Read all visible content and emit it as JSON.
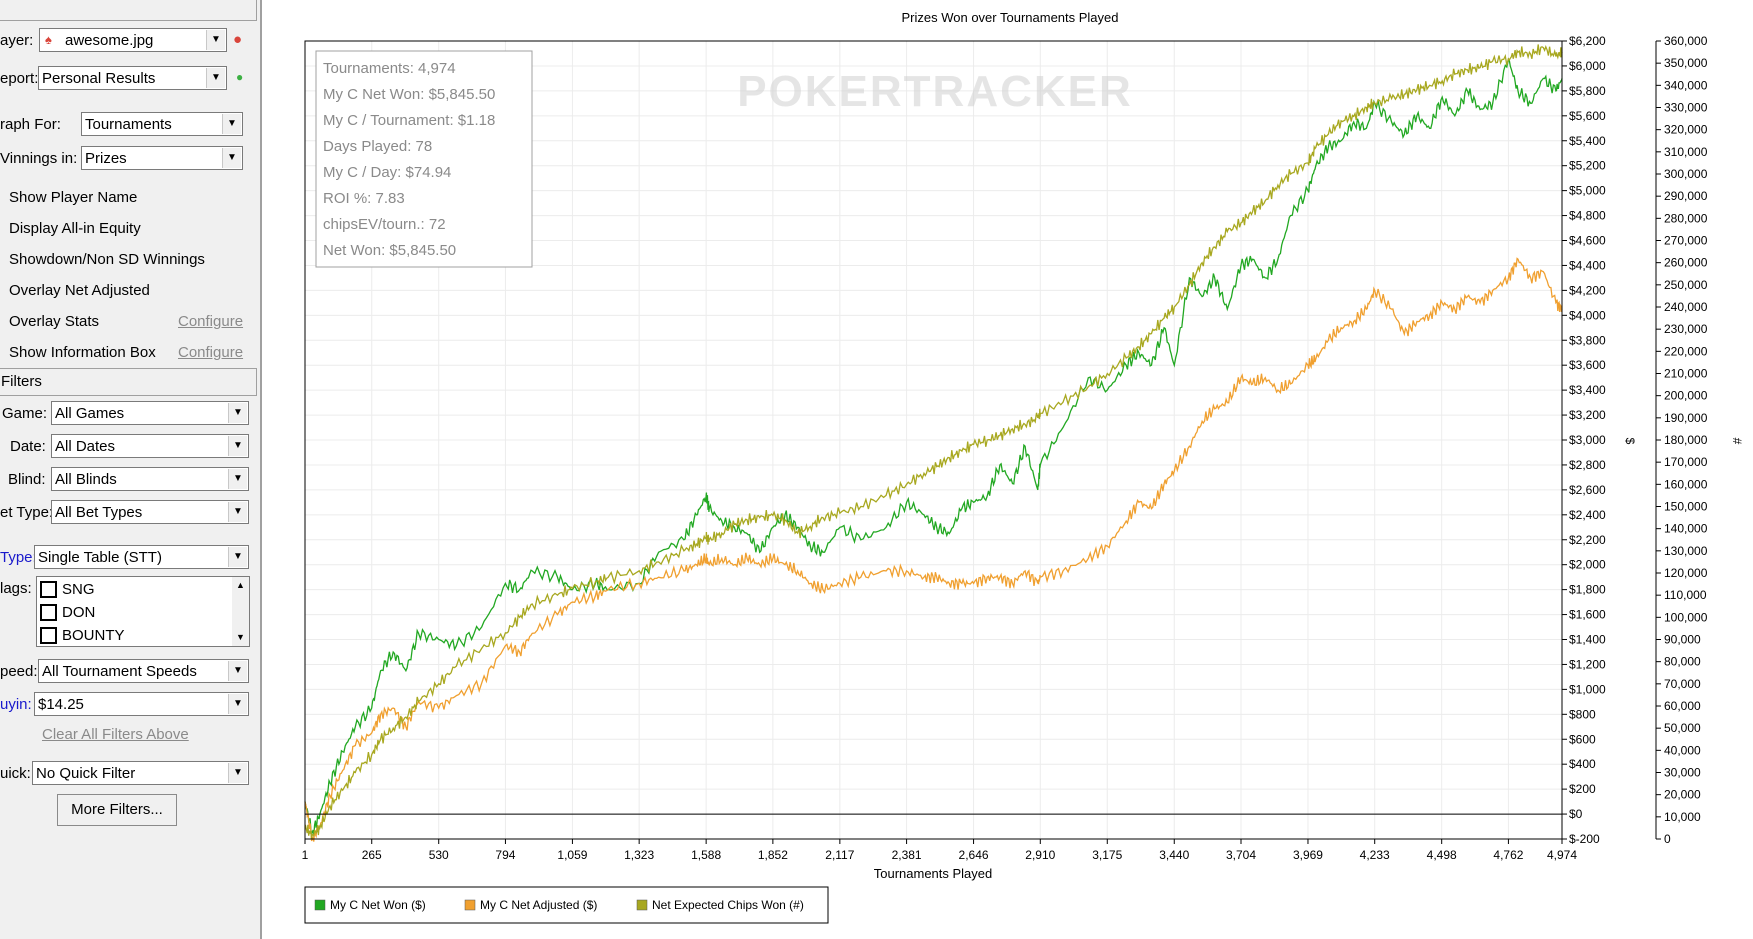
{
  "panel": {
    "player_label": "ayer:",
    "player_value": "awesome.jpg",
    "report_label": "eport:",
    "report_value": "Personal Results",
    "graph_for_label": "raph For:",
    "graph_for_value": "Tournaments",
    "winnings_label": "Vinnings in:",
    "winnings_value": "Prizes",
    "options": [
      {
        "label": "Show Player Name",
        "configure": ""
      },
      {
        "label": "Display All-in Equity",
        "configure": ""
      },
      {
        "label": "Showdown/Non SD Winnings",
        "configure": ""
      },
      {
        "label": "Overlay Net Adjusted",
        "configure": ""
      },
      {
        "label": "Overlay Stats",
        "configure": "Configure"
      },
      {
        "label": "Show Information Box",
        "configure": "Configure"
      }
    ],
    "filters_header": "Filters",
    "game_label": "Game:",
    "game_value": "All Games",
    "date_label": "Date:",
    "date_value": "All Dates",
    "blind_label": "Blind:",
    "blind_value": "All Blinds",
    "bettype_label": "et Type:",
    "bettype_value": "All Bet Types",
    "type_label": "Type:",
    "type_value": "Single Table (STT)",
    "flags_label": "lags:",
    "flags": [
      "SNG",
      "DON",
      "BOUNTY"
    ],
    "speed_label": "peed:",
    "speed_value": "All Tournament Speeds",
    "buyin_label": "uyin:",
    "buyin_value": "$14.25",
    "clear_filters": "Clear All Filters Above",
    "quick_label": "uick:",
    "quick_value": "No Quick Filter",
    "more_filters": "More Filters..."
  },
  "chart_data": {
    "type": "line",
    "title": "Prizes Won over Tournaments Played",
    "xlabel": "Tournaments Played",
    "ylabel": "$",
    "y2label": "#",
    "xlim": [
      1,
      4974
    ],
    "ylim": [
      -200,
      6200
    ],
    "y2lim": [
      0,
      360000
    ],
    "x_ticks": [
      "1",
      "265",
      "530",
      "794",
      "1,059",
      "1,323",
      "1,588",
      "1,852",
      "2,117",
      "2,381",
      "2,646",
      "2,910",
      "3,175",
      "3,440",
      "3,704",
      "3,969",
      "4,233",
      "4,498",
      "4,762",
      "4,974"
    ],
    "y_ticks": [
      "$-200",
      "$0",
      "$200",
      "$400",
      "$600",
      "$800",
      "$1,000",
      "$1,200",
      "$1,400",
      "$1,600",
      "$1,800",
      "$2,000",
      "$2,200",
      "$2,400",
      "$2,600",
      "$2,800",
      "$3,000",
      "$3,200",
      "$3,400",
      "$3,600",
      "$3,800",
      "$4,000",
      "$4,200",
      "$4,400",
      "$4,600",
      "$4,800",
      "$5,000",
      "$5,200",
      "$5,400",
      "$5,600",
      "$5,800",
      "$6,000",
      "$6,200"
    ],
    "y2_ticks": [
      "0",
      "10,000",
      "20,000",
      "30,000",
      "40,000",
      "50,000",
      "60,000",
      "70,000",
      "80,000",
      "90,000",
      "100,000",
      "110,000",
      "120,000",
      "130,000",
      "140,000",
      "150,000",
      "160,000",
      "170,000",
      "180,000",
      "190,000",
      "200,000",
      "210,000",
      "220,000",
      "230,000",
      "240,000",
      "250,000",
      "260,000",
      "270,000",
      "280,000",
      "290,000",
      "300,000",
      "310,000",
      "320,000",
      "330,000",
      "340,000",
      "350,000",
      "360,000"
    ],
    "grid": true,
    "legend_position": "bottom-left",
    "watermark": "POKERTRACKER",
    "info_box": [
      "Tournaments: 4,974",
      "My C Net Won: $5,845.50",
      "My C / Tournament: $1.18",
      "Days Played: 78",
      "My C / Day: $74.94",
      "ROI %: 7.83",
      "chipsEV/tourn.: 72",
      "Net Won: $5,845.50"
    ],
    "series": [
      {
        "name": "My C Net Won ($)",
        "axis": "left",
        "color": "#22a822",
        "x": [
          1,
          30,
          60,
          100,
          150,
          200,
          265,
          300,
          350,
          400,
          450,
          530,
          600,
          700,
          794,
          850,
          900,
          1000,
          1059,
          1150,
          1200,
          1323,
          1400,
          1500,
          1550,
          1588,
          1600,
          1650,
          1700,
          1750,
          1800,
          1852,
          1900,
          1950,
          2000,
          2050,
          2117,
          2200,
          2300,
          2381,
          2450,
          2500,
          2550,
          2600,
          2646,
          2700,
          2750,
          2800,
          2850,
          2900,
          2910,
          3000,
          3100,
          3175,
          3250,
          3300,
          3350,
          3400,
          3440,
          3500,
          3550,
          3600,
          3650,
          3704,
          3750,
          3800,
          3850,
          3900,
          3969,
          4000,
          4050,
          4100,
          4150,
          4200,
          4233,
          4300,
          4350,
          4400,
          4450,
          4500,
          4550,
          4600,
          4650,
          4700,
          4762,
          4800,
          4850,
          4900,
          4950,
          4974
        ],
        "y": [
          100,
          -150,
          0,
          250,
          500,
          700,
          850,
          1150,
          1300,
          1150,
          1450,
          1400,
          1350,
          1500,
          1850,
          1800,
          1950,
          1900,
          1800,
          1850,
          1800,
          1850,
          2100,
          2200,
          2400,
          2550,
          2450,
          2350,
          2300,
          2250,
          2100,
          2300,
          2400,
          2300,
          2150,
          2100,
          2300,
          2200,
          2300,
          2500,
          2400,
          2300,
          2250,
          2450,
          2500,
          2550,
          2800,
          2650,
          2950,
          2600,
          2800,
          3100,
          3500,
          3400,
          3600,
          3700,
          3600,
          3900,
          3600,
          4300,
          4150,
          4300,
          4050,
          4400,
          4450,
          4300,
          4450,
          4800,
          5000,
          5200,
          5350,
          5400,
          5550,
          5500,
          5700,
          5550,
          5450,
          5600,
          5500,
          5750,
          5600,
          5800,
          5650,
          5700,
          6050,
          5800,
          5700,
          5900,
          5800,
          5900
        ]
      },
      {
        "name": "My C Net Adjusted ($)",
        "axis": "left",
        "color": "#f0a030",
        "x": [
          1,
          30,
          60,
          100,
          150,
          200,
          265,
          300,
          350,
          400,
          450,
          530,
          600,
          700,
          794,
          850,
          900,
          1000,
          1059,
          1150,
          1200,
          1323,
          1400,
          1500,
          1550,
          1588,
          1600,
          1650,
          1700,
          1750,
          1800,
          1852,
          1900,
          1950,
          2000,
          2050,
          2117,
          2200,
          2300,
          2381,
          2450,
          2500,
          2550,
          2600,
          2646,
          2700,
          2750,
          2800,
          2850,
          2900,
          2910,
          3000,
          3100,
          3175,
          3250,
          3300,
          3350,
          3400,
          3440,
          3500,
          3550,
          3600,
          3650,
          3704,
          3750,
          3800,
          3850,
          3900,
          3969,
          4000,
          4050,
          4100,
          4150,
          4200,
          4233,
          4300,
          4350,
          4400,
          4450,
          4500,
          4550,
          4600,
          4650,
          4700,
          4762,
          4800,
          4850,
          4900,
          4950,
          4974
        ],
        "y": [
          100,
          -200,
          -100,
          150,
          350,
          550,
          650,
          800,
          850,
          700,
          900,
          850,
          950,
          1050,
          1350,
          1300,
          1450,
          1600,
          1700,
          1750,
          1800,
          1850,
          1900,
          1950,
          2000,
          2050,
          2000,
          2050,
          2000,
          2050,
          2000,
          2050,
          2000,
          1950,
          1850,
          1800,
          1850,
          1900,
          1950,
          1950,
          1900,
          1900,
          1850,
          1850,
          1850,
          1900,
          1900,
          1850,
          1950,
          1850,
          1900,
          1950,
          2050,
          2150,
          2350,
          2500,
          2450,
          2650,
          2750,
          2950,
          3150,
          3250,
          3300,
          3500,
          3450,
          3500,
          3400,
          3450,
          3600,
          3650,
          3800,
          3900,
          3950,
          4050,
          4200,
          4050,
          3850,
          3950,
          4000,
          4100,
          4050,
          4150,
          4100,
          4200,
          4300,
          4450,
          4300,
          4350,
          4100,
          4050
        ]
      },
      {
        "name": "Net Expected Chips Won (#)",
        "axis": "right",
        "color": "#a8a820",
        "x": [
          1,
          30,
          60,
          100,
          150,
          200,
          265,
          300,
          350,
          400,
          450,
          530,
          600,
          700,
          794,
          850,
          900,
          1000,
          1059,
          1150,
          1200,
          1323,
          1400,
          1500,
          1550,
          1588,
          1600,
          1650,
          1700,
          1750,
          1800,
          1852,
          1900,
          1950,
          2000,
          2050,
          2117,
          2200,
          2300,
          2381,
          2450,
          2500,
          2550,
          2600,
          2646,
          2700,
          2750,
          2800,
          2850,
          2900,
          2910,
          3000,
          3100,
          3175,
          3250,
          3300,
          3350,
          3400,
          3440,
          3500,
          3550,
          3600,
          3650,
          3704,
          3750,
          3800,
          3850,
          3900,
          3969,
          4000,
          4050,
          4100,
          4150,
          4200,
          4233,
          4300,
          4350,
          4400,
          4450,
          4500,
          4550,
          4600,
          4650,
          4700,
          4762,
          4800,
          4850,
          4900,
          4950,
          4974
        ],
        "y": [
          5000,
          2000,
          5000,
          15000,
          22000,
          30000,
          38000,
          45000,
          50000,
          55000,
          62000,
          70000,
          78000,
          86000,
          93000,
          100000,
          106000,
          110000,
          113000,
          116000,
          118000,
          121000,
          125000,
          130000,
          133000,
          136000,
          135000,
          138000,
          142000,
          144000,
          145000,
          146000,
          144000,
          138000,
          141000,
          145000,
          147000,
          150000,
          155000,
          160000,
          165000,
          168000,
          172000,
          175000,
          178000,
          180000,
          182000,
          185000,
          187000,
          190000,
          192000,
          197000,
          204000,
          210000,
          217000,
          222000,
          228000,
          235000,
          240000,
          250000,
          260000,
          267000,
          274000,
          278000,
          283000,
          288000,
          295000,
          300000,
          305000,
          312000,
          318000,
          324000,
          326000,
          330000,
          332000,
          334000,
          336000,
          338000,
          340000,
          342000,
          345000,
          347000,
          348000,
          351000,
          352000,
          355000,
          354000,
          357000,
          353000,
          355000
        ]
      }
    ]
  }
}
